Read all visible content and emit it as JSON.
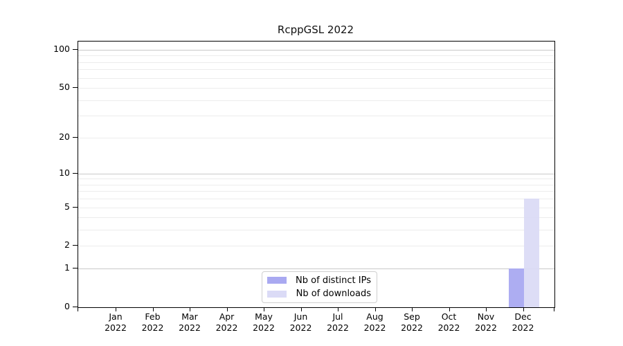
{
  "chart_data": {
    "type": "bar",
    "title": "RcppGSL 2022",
    "x_categories": [
      {
        "label": "Jan",
        "sub": "2022"
      },
      {
        "label": "Feb",
        "sub": "2022"
      },
      {
        "label": "Mar",
        "sub": "2022"
      },
      {
        "label": "Apr",
        "sub": "2022"
      },
      {
        "label": "May",
        "sub": "2022"
      },
      {
        "label": "Jun",
        "sub": "2022"
      },
      {
        "label": "Jul",
        "sub": "2022"
      },
      {
        "label": "Aug",
        "sub": "2022"
      },
      {
        "label": "Sep",
        "sub": "2022"
      },
      {
        "label": "Oct",
        "sub": "2022"
      },
      {
        "label": "Nov",
        "sub": "2022"
      },
      {
        "label": "Dec",
        "sub": "2022"
      }
    ],
    "series": [
      {
        "name": "Nb of distinct IPs",
        "color": "#a9a9f1",
        "values": [
          0,
          0,
          0,
          0,
          0,
          0,
          0,
          0,
          0,
          0,
          0,
          1
        ]
      },
      {
        "name": "Nb of downloads",
        "color": "#dbdbf6",
        "values": [
          0,
          0,
          0,
          0,
          0,
          0,
          0,
          0,
          0,
          0,
          0,
          6
        ]
      }
    ],
    "yticks": [
      0,
      1,
      2,
      5,
      10,
      20,
      50,
      100
    ],
    "ylim": [
      0,
      116
    ],
    "yscale": "log1p",
    "grid": {
      "minor_values": [
        2,
        3,
        4,
        5,
        6,
        7,
        8,
        9,
        20,
        30,
        40,
        50,
        60,
        70,
        80,
        90
      ],
      "major_values": [
        1,
        10,
        100
      ],
      "minor_color": "#ececec",
      "major_color": "#c8c8c8"
    },
    "legend_position": "inside-bottom-center"
  }
}
